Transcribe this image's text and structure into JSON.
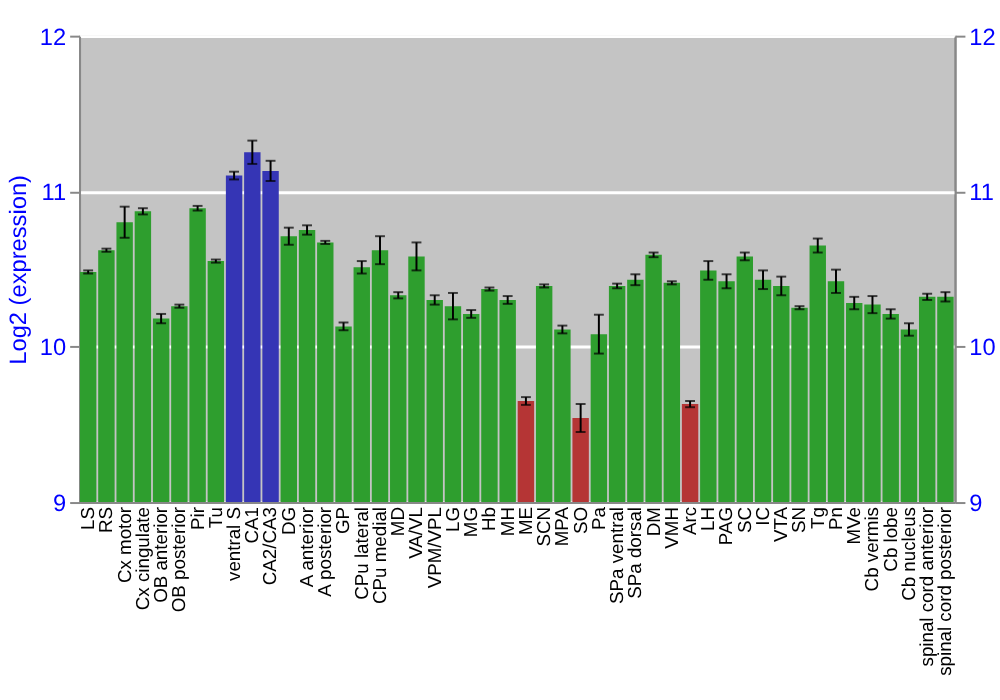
{
  "chart_data": {
    "type": "bar",
    "ylabel": "Log2 (expression)",
    "categories": [
      "LS",
      "RS",
      "Cx motor",
      "Cx cingulate",
      "OB anterior",
      "OB posterior",
      "Pir",
      "Tu",
      "ventral S",
      "CA1",
      "CA2/CA3",
      "DG",
      "A anterior",
      "A posterior",
      "GP",
      "CPu lateral",
      "CPu medial",
      "MD",
      "VA/VL",
      "VPM/VPL",
      "LG",
      "MG",
      "Hb",
      "MH",
      "ME",
      "SCN",
      "MPA",
      "SO",
      "Pa",
      "SPa ventral",
      "SPa dorsal",
      "DM",
      "VMH",
      "Arc",
      "LH",
      "PAG",
      "SC",
      "IC",
      "VTA",
      "SN",
      "Tg",
      "Pn",
      "MVe",
      "Cb vermis",
      "Cb lobe",
      "Cb nucleus",
      "spinal cord anterior",
      "spinal cord posterior"
    ],
    "values": [
      10.48,
      10.62,
      10.8,
      10.87,
      10.18,
      10.26,
      10.89,
      10.55,
      11.1,
      11.25,
      11.13,
      10.71,
      10.75,
      10.67,
      10.13,
      10.51,
      10.62,
      10.33,
      10.58,
      10.3,
      10.26,
      10.21,
      10.37,
      10.3,
      9.65,
      10.39,
      10.11,
      9.54,
      10.08,
      10.39,
      10.43,
      10.59,
      10.41,
      9.63,
      10.49,
      10.42,
      10.58,
      10.43,
      10.39,
      10.25,
      10.65,
      10.42,
      10.28,
      10.27,
      10.21,
      10.11,
      10.32,
      10.32
    ],
    "errors": [
      0.01,
      0.01,
      0.1,
      0.02,
      0.03,
      0.01,
      0.015,
      0.01,
      0.025,
      0.075,
      0.065,
      0.055,
      0.03,
      0.01,
      0.025,
      0.04,
      0.09,
      0.02,
      0.09,
      0.03,
      0.085,
      0.025,
      0.01,
      0.025,
      0.025,
      0.01,
      0.025,
      0.09,
      0.125,
      0.015,
      0.035,
      0.015,
      0.01,
      0.02,
      0.06,
      0.045,
      0.025,
      0.06,
      0.06,
      0.01,
      0.045,
      0.075,
      0.04,
      0.055,
      0.03,
      0.04,
      0.02,
      0.03
    ],
    "colors": [
      "#2e9e2e",
      "#2e9e2e",
      "#2e9e2e",
      "#2e9e2e",
      "#2e9e2e",
      "#2e9e2e",
      "#2e9e2e",
      "#2e9e2e",
      "#3535b5",
      "#3535b5",
      "#3535b5",
      "#2e9e2e",
      "#2e9e2e",
      "#2e9e2e",
      "#2e9e2e",
      "#2e9e2e",
      "#2e9e2e",
      "#2e9e2e",
      "#2e9e2e",
      "#2e9e2e",
      "#2e9e2e",
      "#2e9e2e",
      "#2e9e2e",
      "#2e9e2e",
      "#b53535",
      "#2e9e2e",
      "#2e9e2e",
      "#b53535",
      "#2e9e2e",
      "#2e9e2e",
      "#2e9e2e",
      "#2e9e2e",
      "#2e9e2e",
      "#b53535",
      "#2e9e2e",
      "#2e9e2e",
      "#2e9e2e",
      "#2e9e2e",
      "#2e9e2e",
      "#2e9e2e",
      "#2e9e2e",
      "#2e9e2e",
      "#2e9e2e",
      "#2e9e2e",
      "#2e9e2e",
      "#2e9e2e",
      "#2e9e2e",
      "#2e9e2e"
    ],
    "ylim": [
      9,
      12
    ],
    "yticks": [
      9,
      10,
      11,
      12
    ],
    "y2lim": [
      9,
      12
    ],
    "y2ticks": [
      9,
      10,
      11,
      12
    ],
    "grid": "y"
  }
}
